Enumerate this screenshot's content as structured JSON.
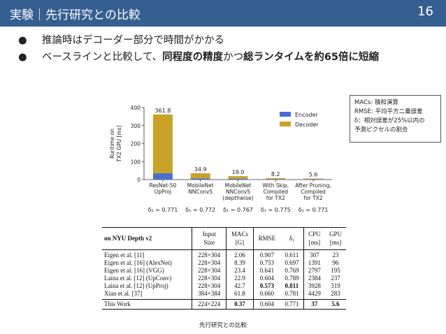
{
  "slide": {
    "title": "実験｜先行研究との比較",
    "page_number": "16",
    "bullet_symbol": "●",
    "bullets": [
      {
        "parts": [
          {
            "text": "推論時はデコーダー部分で時間がかかる",
            "bold": false
          }
        ]
      },
      {
        "parts": [
          {
            "text": "ベースラインと比較して、",
            "bold": false
          },
          {
            "text": "同程度の精度",
            "bold": true
          },
          {
            "text": "かつ",
            "bold": false
          },
          {
            "text": "総ランタイムを約65倍に短縮",
            "bold": true
          }
        ]
      }
    ],
    "note": [
      "MACs: 積和演算",
      "RMSE: 平均平方二乗誤差",
      "δ：相対誤差が25%以内の",
      "予測ピクセルの割合"
    ],
    "caption": "先行研究との比較"
  },
  "colors": {
    "title_bar": "#365f91",
    "encoder": "#4b6fd0",
    "decoder": "#c9a227"
  },
  "chart_data": {
    "type": "bar",
    "stacked": true,
    "ylabel": "Runtime on TX2 GPU [ms]",
    "ylim": [
      0,
      400
    ],
    "yticks": [
      0,
      100,
      200,
      300,
      400
    ],
    "categories": [
      [
        "ResNet-50",
        "UpProj"
      ],
      [
        "MobileNet",
        "NNConv5"
      ],
      [
        "MobileNet",
        "NNConv5",
        "(depthwise)"
      ],
      [
        "With Skip,",
        "Compiled",
        "for TX2"
      ],
      [
        "After Pruning,",
        "Compiled",
        "for TX2"
      ]
    ],
    "series": [
      {
        "name": "Encoder",
        "values": [
          35,
          7,
          5,
          2.5,
          1.8
        ]
      },
      {
        "name": "Decoder",
        "values": [
          326.8,
          27.9,
          14.0,
          5.7,
          3.8
        ]
      }
    ],
    "totals": [
      "361.8",
      "34.9",
      "19.0",
      "8.2",
      "5.6"
    ],
    "delta_labels": [
      "δ₁ = 0.771",
      "δ₁ = 0.772",
      "δ₁ = 0.767",
      "δ₁ = 0.775",
      "δ₁ = 0.771"
    ],
    "legend_position": "top-right",
    "grid": false
  },
  "table": {
    "header": {
      "name": "on NYU Depth v2",
      "input": [
        "Input",
        "Size"
      ],
      "macs": [
        "MACs",
        "[G]"
      ],
      "rmse": "RMSE",
      "delta": "δ₁",
      "cpu": [
        "CPU",
        "[ms]"
      ],
      "gpu": [
        "GPU",
        "[ms]"
      ]
    },
    "rows": [
      {
        "name": "Eigen et al. [11]",
        "input": "228×304",
        "macs": "2.06",
        "rmse": "0.907",
        "delta": "0.611",
        "cpu": "307",
        "gpu": "23"
      },
      {
        "name": "Eigen et al. [16] (AlexNet)",
        "input": "228×304",
        "macs": "8.39",
        "rmse": "0.753",
        "delta": "0.697",
        "cpu": "1391",
        "gpu": "96"
      },
      {
        "name": "Eigen et al. [16] (VGG)",
        "input": "228×304",
        "macs": "23.4",
        "rmse": "0.641",
        "delta": "0.769",
        "cpu": "2797",
        "gpu": "195"
      },
      {
        "name": "Laina et al. [12] (UpConv)",
        "input": "228×304",
        "macs": "22.9",
        "rmse": "0.604",
        "delta": "0.789",
        "cpu": "2384",
        "gpu": "237"
      },
      {
        "name": "Laina et al. [12] (UpProj)",
        "input": "228×304",
        "macs": "42.7",
        "rmse": "0.573",
        "delta": "0.811",
        "cpu": "3928",
        "gpu": "319"
      },
      {
        "name": "Xian et al. [37]",
        "input": "384×384",
        "macs": "61.8",
        "rmse": "0.660",
        "delta": "0.781",
        "cpu": "4429",
        "gpu": "283"
      }
    ],
    "this_work": {
      "name": "This Work",
      "input": "224×224",
      "macs": "0.37",
      "rmse": "0.604",
      "delta": "0.771",
      "cpu": "37",
      "gpu": "5.6"
    }
  }
}
